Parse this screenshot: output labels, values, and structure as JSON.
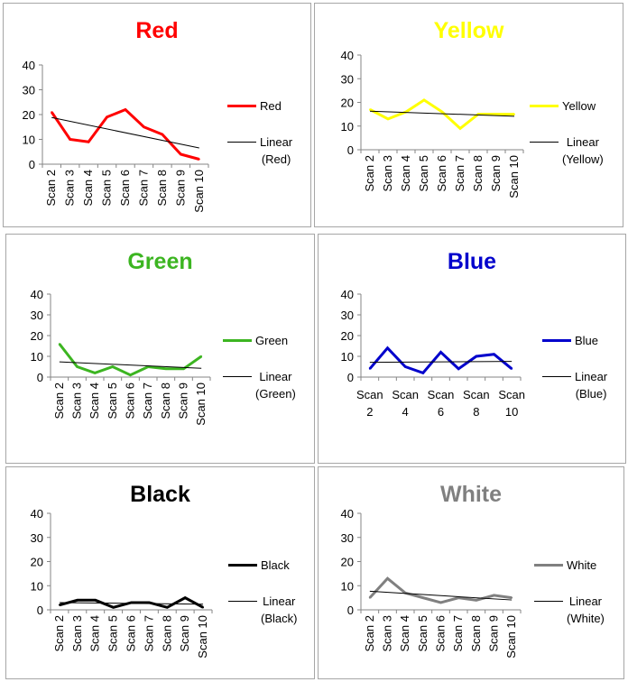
{
  "colors": {
    "red": "#ff0000",
    "yellow": "#ffff00",
    "green": "#3cb521",
    "blue": "#0000cc",
    "black": "#000000",
    "white": "#808080"
  },
  "chart_data": [
    {
      "type": "line",
      "title": "Red",
      "title_color": "#ff0000",
      "categories": [
        "Scan 2",
        "Scan 3",
        "Scan 4",
        "Scan 5",
        "Scan 6",
        "Scan 7",
        "Scan 8",
        "Scan 9",
        "Scan 10"
      ],
      "series": [
        {
          "name": "Red",
          "values": [
            21,
            10,
            9,
            19,
            22,
            15,
            12,
            4,
            2
          ],
          "color": "#ff0000"
        }
      ],
      "trend_legend": [
        "Linear",
        "(Red)"
      ],
      "yticks": [
        "0",
        "10",
        "20",
        "30",
        "40"
      ],
      "ylim": [
        0,
        40
      ],
      "legend_position": "right"
    },
    {
      "type": "line",
      "title": "Yellow",
      "title_color": "#ffff00",
      "categories": [
        "Scan 2",
        "Scan 3",
        "Scan 4",
        "Scan 5",
        "Scan 6",
        "Scan 7",
        "Scan 8",
        "Scan 9",
        "Scan 10"
      ],
      "series": [
        {
          "name": "Yellow",
          "values": [
            17,
            13,
            16,
            21,
            16,
            9,
            15,
            15,
            15
          ],
          "color": "#ffff00"
        }
      ],
      "trend_legend": [
        "Linear",
        "(Yellow)"
      ],
      "yticks": [
        "0",
        "10",
        "20",
        "30",
        "40"
      ],
      "ylim": [
        0,
        40
      ],
      "legend_position": "right"
    },
    {
      "type": "line",
      "title": "Green",
      "title_color": "#3cb521",
      "categories": [
        "Scan 2",
        "Scan 3",
        "Scan 4",
        "Scan 5",
        "Scan 6",
        "Scan 7",
        "Scan 8",
        "Scan 9",
        "Scan 10"
      ],
      "series": [
        {
          "name": "Green",
          "values": [
            16,
            5,
            2,
            5,
            1,
            5,
            4,
            4,
            10
          ],
          "color": "#3cb521"
        }
      ],
      "trend_legend": [
        "Linear",
        "(Green)"
      ],
      "yticks": [
        "0",
        "10",
        "20",
        "30",
        "40"
      ],
      "ylim": [
        0,
        40
      ],
      "legend_position": "right"
    },
    {
      "type": "line",
      "title": "Blue",
      "title_color": "#0000cc",
      "categories": [
        "Scan 2",
        "Scan 3",
        "Scan 4",
        "Scan 5",
        "Scan 6",
        "Scan 7",
        "Scan 8",
        "Scan 9",
        "Scan 10"
      ],
      "shown_categories": [
        "Scan 2",
        "Scan 4",
        "Scan 6",
        "Scan 8",
        "Scan 10"
      ],
      "series": [
        {
          "name": "Blue",
          "values": [
            4,
            14,
            5,
            2,
            12,
            4,
            10,
            11,
            4
          ],
          "color": "#0000cc"
        }
      ],
      "trend_legend": [
        "Linear",
        "(Blue)"
      ],
      "yticks": [
        "0",
        "10",
        "20",
        "30",
        "40"
      ],
      "ylim": [
        0,
        40
      ],
      "legend_position": "right"
    },
    {
      "type": "line",
      "title": "Black",
      "title_color": "#000000",
      "categories": [
        "Scan 2",
        "Scan 3",
        "Scan 4",
        "Scan 5",
        "Scan 6",
        "Scan 7",
        "Scan 8",
        "Scan 9",
        "Scan 10"
      ],
      "series": [
        {
          "name": "Black",
          "values": [
            2,
            4,
            4,
            1,
            3,
            3,
            1,
            5,
            1
          ],
          "color": "#000000"
        }
      ],
      "trend_legend": [
        "Linear",
        "(Black)"
      ],
      "yticks": [
        "0",
        "10",
        "20",
        "30",
        "40"
      ],
      "ylim": [
        0,
        40
      ],
      "legend_position": "right"
    },
    {
      "type": "line",
      "title": "White",
      "title_color": "#808080",
      "categories": [
        "Scan 2",
        "Scan 3",
        "Scan 4",
        "Scan 5",
        "Scan 6",
        "Scan 7",
        "Scan 8",
        "Scan 9",
        "Scan 10"
      ],
      "series": [
        {
          "name": "White",
          "values": [
            5,
            13,
            7,
            5,
            3,
            5,
            4,
            6,
            5
          ],
          "color": "#808080"
        }
      ],
      "trend_legend": [
        "Linear",
        "(White)"
      ],
      "yticks": [
        "0",
        "10",
        "20",
        "30",
        "40"
      ],
      "ylim": [
        0,
        40
      ],
      "legend_position": "right"
    }
  ]
}
